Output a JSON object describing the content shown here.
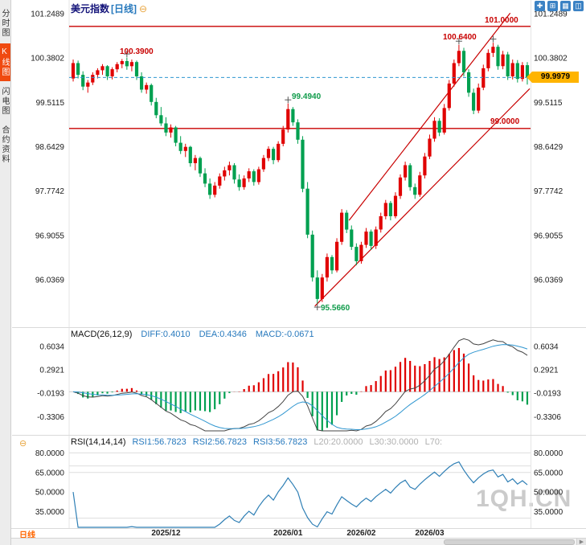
{
  "colors": {
    "up": "#e00000",
    "down": "#00a050",
    "line_red": "#c80000",
    "dashed_price": "#2f96d0",
    "macd_diff": "#444444",
    "macd_dea": "#2f96d0",
    "rsi_line": "#2f7fb5",
    "tag_bg": "#ffb400",
    "accent_orange": "#ff6600"
  },
  "sidebar": {
    "tabs": [
      {
        "label": "分时图",
        "active": false
      },
      {
        "label": "K线图",
        "active": true
      },
      {
        "label": "闪电图",
        "active": false
      },
      {
        "label": "合约资料",
        "active": false
      }
    ]
  },
  "header": {
    "title": "美元指数",
    "period": "[日线]",
    "collapse_icon": "⊖"
  },
  "window_icons": [
    {
      "name": "pin-window-icon",
      "glyph": "✚"
    },
    {
      "name": "split-window-icon",
      "glyph": "⊞"
    },
    {
      "name": "grid-layout-icon",
      "glyph": "▦"
    },
    {
      "name": "tile-layout-icon",
      "glyph": "◫"
    }
  ],
  "price_tag": {
    "value": "99.9979"
  },
  "annotations": {
    "peak1": "100.3900",
    "peak2": "99.4940",
    "peak3": "100.6400",
    "trough": "95.5660",
    "resistance": "101.0000",
    "support": "99.0000"
  },
  "macd_header": {
    "name": "MACD(26,12,9)",
    "diff": "DIFF:0.4010",
    "dea": "DEA:0.4346",
    "macd": "MACD:-0.0671"
  },
  "rsi_header": {
    "collapse_icon": "⊖",
    "name": "RSI(14,14,14)",
    "rsi1": "RSI1:56.7823",
    "rsi2": "RSI2:56.7823",
    "rsi3": "RSI3:56.7823",
    "l20": "L20:20.0000",
    "l30": "L30:30.0000",
    "l70": "L70:"
  },
  "bottom_bar": {
    "period_label": "日线"
  },
  "scrollbar": {
    "left_arrow": "◀",
    "right_arrow": "▶"
  },
  "watermark": "1QH.CN",
  "chart_data": {
    "type": "candlestick",
    "title": "美元指数 [日线]",
    "y_axis": {
      "ticks": [
        "101.2489",
        "100.3802",
        "99.5115",
        "98.6429",
        "97.7742",
        "96.9055",
        "96.0369"
      ],
      "range": [
        95.186,
        101.422
      ]
    },
    "x_axis": {
      "ticks": [
        {
          "label": "2025/12",
          "i": 19
        },
        {
          "label": "2026/01",
          "i": 44
        },
        {
          "label": "2026/02",
          "i": 59
        },
        {
          "label": "2026/03",
          "i": 73
        }
      ]
    },
    "current_price": 99.9979,
    "hlines": [
      101.0,
      99.0
    ],
    "trendlines": [
      {
        "i1": 49.5,
        "v1": 95.52,
        "i2": 93.5,
        "v2": 99.78
      },
      {
        "i1": 56.5,
        "v1": 97.2,
        "i2": 89.5,
        "v2": 101.26
      }
    ],
    "marks": [
      {
        "i": 11,
        "v": 100.46
      },
      {
        "i": 44,
        "v": 99.56
      },
      {
        "i": 50,
        "v": 95.5
      },
      {
        "i": 79,
        "v": 100.71
      },
      {
        "i": 86,
        "v": 100.75
      }
    ],
    "candles": [
      [
        99.98,
        100.35,
        99.92,
        100.28
      ],
      [
        100.28,
        100.33,
        99.98,
        100.05
      ],
      [
        100.05,
        100.12,
        99.75,
        99.82
      ],
      [
        99.82,
        99.95,
        99.7,
        99.9
      ],
      [
        99.9,
        100.1,
        99.85,
        100.05
      ],
      [
        100.05,
        100.18,
        99.98,
        100.14
      ],
      [
        100.14,
        100.26,
        100.05,
        100.22
      ],
      [
        100.22,
        100.24,
        99.95,
        100.02
      ],
      [
        100.02,
        100.2,
        99.96,
        100.16
      ],
      [
        100.16,
        100.3,
        100.1,
        100.26
      ],
      [
        100.26,
        100.36,
        100.18,
        100.32
      ],
      [
        100.32,
        100.39,
        100.15,
        100.22
      ],
      [
        100.22,
        100.35,
        100.12,
        100.3
      ],
      [
        100.3,
        100.33,
        99.95,
        100.02
      ],
      [
        100.02,
        100.1,
        99.7,
        99.76
      ],
      [
        99.76,
        99.9,
        99.68,
        99.85
      ],
      [
        99.85,
        99.88,
        99.45,
        99.52
      ],
      [
        99.52,
        99.6,
        99.2,
        99.26
      ],
      [
        99.26,
        99.42,
        99.05,
        99.1
      ],
      [
        99.1,
        99.22,
        98.85,
        98.92
      ],
      [
        98.92,
        99.08,
        98.82,
        99.02
      ],
      [
        99.02,
        99.05,
        98.65,
        98.72
      ],
      [
        98.72,
        98.85,
        98.5,
        98.56
      ],
      [
        98.56,
        98.7,
        98.44,
        98.64
      ],
      [
        98.64,
        98.66,
        98.25,
        98.32
      ],
      [
        98.32,
        98.48,
        98.18,
        98.42
      ],
      [
        98.42,
        98.45,
        98.05,
        98.12
      ],
      [
        98.12,
        98.22,
        97.85,
        97.92
      ],
      [
        97.92,
        98.02,
        97.62,
        97.7
      ],
      [
        97.7,
        97.95,
        97.65,
        97.88
      ],
      [
        97.88,
        98.12,
        97.82,
        98.06
      ],
      [
        98.06,
        98.25,
        97.98,
        98.18
      ],
      [
        98.18,
        98.35,
        98.08,
        98.28
      ],
      [
        98.28,
        98.32,
        97.92,
        98.0
      ],
      [
        98.0,
        98.1,
        97.78,
        97.85
      ],
      [
        97.85,
        98.08,
        97.8,
        98.02
      ],
      [
        98.02,
        98.22,
        97.95,
        98.16
      ],
      [
        98.16,
        98.2,
        97.88,
        97.95
      ],
      [
        97.95,
        98.25,
        97.9,
        98.2
      ],
      [
        98.2,
        98.48,
        98.15,
        98.42
      ],
      [
        98.42,
        98.65,
        98.36,
        98.6
      ],
      [
        98.6,
        98.64,
        98.3,
        98.38
      ],
      [
        98.38,
        98.75,
        98.34,
        98.7
      ],
      [
        98.7,
        99.05,
        98.65,
        98.98
      ],
      [
        98.98,
        99.49,
        98.92,
        99.38
      ],
      [
        99.38,
        99.42,
        99.05,
        99.12
      ],
      [
        99.12,
        99.18,
        98.7,
        98.78
      ],
      [
        98.78,
        98.85,
        97.75,
        97.82
      ],
      [
        97.82,
        97.95,
        96.85,
        96.92
      ],
      [
        96.92,
        97.0,
        96.0,
        96.08
      ],
      [
        96.08,
        96.22,
        95.57,
        95.66
      ],
      [
        95.66,
        96.15,
        95.6,
        96.08
      ],
      [
        96.08,
        96.55,
        96.0,
        96.48
      ],
      [
        96.48,
        96.52,
        96.15,
        96.22
      ],
      [
        96.22,
        96.85,
        96.18,
        96.78
      ],
      [
        96.78,
        97.42,
        96.72,
        97.35
      ],
      [
        97.35,
        97.4,
        96.95,
        97.02
      ],
      [
        97.02,
        97.1,
        96.62,
        96.68
      ],
      [
        96.68,
        96.75,
        96.32,
        96.4
      ],
      [
        96.4,
        96.78,
        96.35,
        96.72
      ],
      [
        96.72,
        97.05,
        96.66,
        96.98
      ],
      [
        96.98,
        97.02,
        96.62,
        96.7
      ],
      [
        96.7,
        97.08,
        96.64,
        97.02
      ],
      [
        97.02,
        97.35,
        96.96,
        97.28
      ],
      [
        97.28,
        97.6,
        97.22,
        97.54
      ],
      [
        97.54,
        97.58,
        97.2,
        97.28
      ],
      [
        97.28,
        97.75,
        97.24,
        97.68
      ],
      [
        97.68,
        98.1,
        97.62,
        98.04
      ],
      [
        98.04,
        98.35,
        97.98,
        98.28
      ],
      [
        98.28,
        98.32,
        97.78,
        97.85
      ],
      [
        97.85,
        97.92,
        97.62,
        97.7
      ],
      [
        97.7,
        98.15,
        97.66,
        98.08
      ],
      [
        98.08,
        98.52,
        98.02,
        98.45
      ],
      [
        98.45,
        98.88,
        98.4,
        98.8
      ],
      [
        98.8,
        99.22,
        98.74,
        99.15
      ],
      [
        99.15,
        99.2,
        98.85,
        98.92
      ],
      [
        98.92,
        99.48,
        98.88,
        99.4
      ],
      [
        99.4,
        99.95,
        99.35,
        99.88
      ],
      [
        99.88,
        100.35,
        99.82,
        100.28
      ],
      [
        100.28,
        100.64,
        100.22,
        100.52
      ],
      [
        100.52,
        100.58,
        100.02,
        100.1
      ],
      [
        100.1,
        100.16,
        99.62,
        99.7
      ],
      [
        99.7,
        99.78,
        99.28,
        99.35
      ],
      [
        99.35,
        99.88,
        99.3,
        99.8
      ],
      [
        99.8,
        100.25,
        99.75,
        100.18
      ],
      [
        100.18,
        100.55,
        100.12,
        100.48
      ],
      [
        100.48,
        100.68,
        100.4,
        100.6
      ],
      [
        100.6,
        100.64,
        100.15,
        100.22
      ],
      [
        100.22,
        100.52,
        100.16,
        100.45
      ],
      [
        100.45,
        100.5,
        99.95,
        100.02
      ],
      [
        100.02,
        100.35,
        99.96,
        100.28
      ],
      [
        100.28,
        100.34,
        99.9,
        99.97
      ],
      [
        99.97,
        100.3,
        99.92,
        100.24
      ],
      [
        100.24,
        100.3,
        99.86,
        99.9979
      ]
    ],
    "macd": {
      "fast": 12,
      "slow": 26,
      "signal": 9,
      "y_ticks": [
        "0.6034",
        "0.2921",
        "-0.0193",
        "-0.3306"
      ],
      "range": [
        -0.52,
        0.72
      ]
    },
    "rsi": {
      "period": 14,
      "y_ticks": [
        "80.0000",
        "65.0000",
        "50.0000",
        "35.0000"
      ],
      "levels": [
        80,
        70,
        65,
        30
      ],
      "range": [
        23,
        87
      ]
    }
  }
}
